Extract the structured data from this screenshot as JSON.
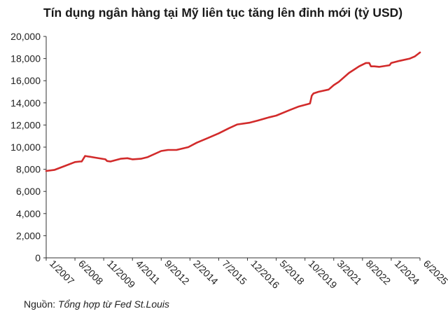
{
  "title": "Tín dụng ngân hàng tại Mỹ liên tục tăng lên đỉnh mới (tỷ USD)",
  "source_label": "Nguồn:",
  "source_text": "Tổng hợp từ Fed St.Louis",
  "colors": {
    "line": "#d22b2b",
    "axis": "#333333"
  },
  "chart_data": {
    "type": "line",
    "title": "Tín dụng ngân hàng tại Mỹ liên tục tăng lên đỉnh mới (tỷ USD)",
    "xlabel": "",
    "ylabel": "",
    "ylim": [
      0,
      20000
    ],
    "yticks": [
      0,
      2000,
      4000,
      6000,
      8000,
      10000,
      12000,
      14000,
      16000,
      18000,
      20000
    ],
    "ytick_labels": [
      "0",
      "2,000",
      "4,000",
      "6,000",
      "8,000",
      "10,000",
      "12,000",
      "14,000",
      "16,000",
      "18,000",
      "20,000"
    ],
    "xlim": [
      "2007-01",
      "2025-06"
    ],
    "xtick_labels": [
      "1/2007",
      "6/2008",
      "11/2009",
      "4/2011",
      "9/2012",
      "2/2014",
      "7/2015",
      "12/2016",
      "5/2018",
      "10/2019",
      "3/2021",
      "8/2022",
      "1/2024",
      "6/2025"
    ],
    "grid": false,
    "series": [
      {
        "x": [
          "2007-01",
          "2007-06",
          "2007-12",
          "2008-06",
          "2008-09",
          "2008-10",
          "2008-12",
          "2009-06",
          "2009-12",
          "2010-01",
          "2010-03",
          "2010-09",
          "2011-01",
          "2011-04",
          "2011-09",
          "2012-01",
          "2012-09",
          "2013-01",
          "2013-06",
          "2014-01",
          "2014-06",
          "2015-01",
          "2015-07",
          "2016-01",
          "2016-06",
          "2017-01",
          "2017-06",
          "2018-01",
          "2018-05",
          "2019-01",
          "2019-06",
          "2019-12",
          "2020-01",
          "2020-02",
          "2020-03",
          "2020-06",
          "2020-12",
          "2021-03",
          "2021-06",
          "2021-12",
          "2022-06",
          "2022-08",
          "2022-10",
          "2022-12",
          "2023-01",
          "2023-03",
          "2023-06",
          "2023-12",
          "2024-01",
          "2024-06",
          "2024-12",
          "2025-03",
          "2025-06"
        ],
        "values": [
          7850,
          7950,
          8300,
          8650,
          8700,
          8700,
          9200,
          9050,
          8900,
          8750,
          8700,
          8950,
          9000,
          8900,
          8950,
          9100,
          9650,
          9750,
          9750,
          10000,
          10400,
          10850,
          11250,
          11700,
          12050,
          12200,
          12400,
          12700,
          12850,
          13350,
          13650,
          13900,
          13950,
          14650,
          14850,
          15000,
          15200,
          15600,
          15900,
          16700,
          17300,
          17450,
          17600,
          17600,
          17300,
          17300,
          17250,
          17400,
          17600,
          17800,
          18000,
          18200,
          18550
        ]
      }
    ]
  }
}
